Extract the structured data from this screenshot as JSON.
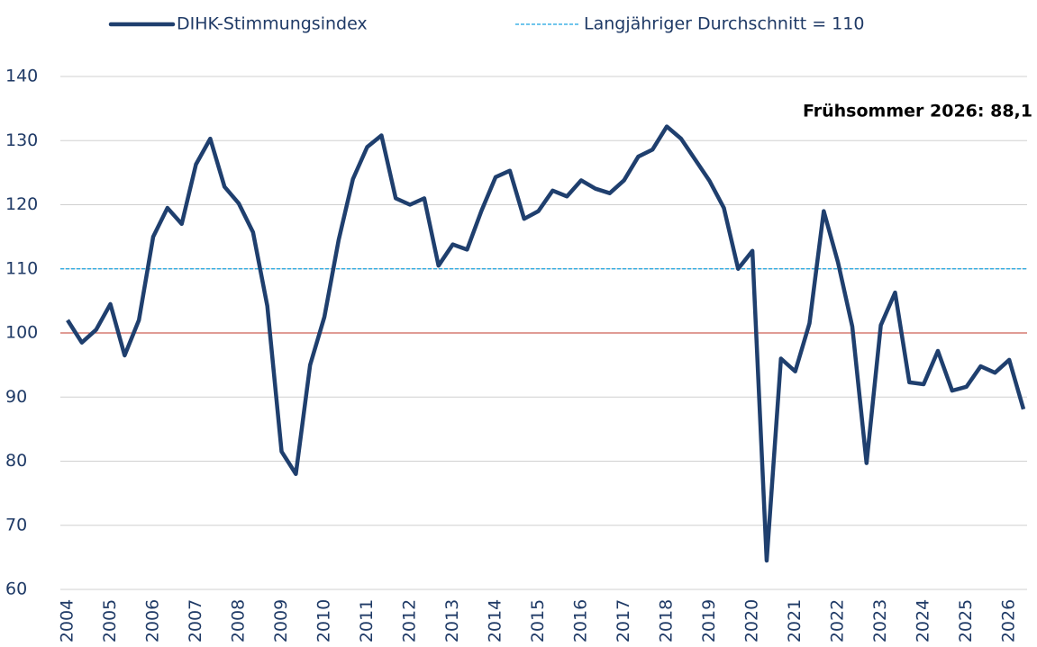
{
  "chart_data": {
    "type": "line",
    "categories": [
      "2004",
      null,
      null,
      "2005",
      null,
      null,
      "2006",
      null,
      null,
      "2007",
      null,
      null,
      "2008",
      null,
      null,
      "2009",
      null,
      null,
      "2010",
      null,
      null,
      "2011",
      null,
      null,
      "2012",
      null,
      null,
      "2013",
      null,
      null,
      "2014",
      null,
      null,
      "2015",
      null,
      null,
      "2016",
      null,
      null,
      "2017",
      null,
      null,
      "2018",
      null,
      null,
      "2019",
      null,
      null,
      "2020",
      null,
      null,
      "2021",
      null,
      null,
      "2022",
      null,
      null,
      "2023",
      null,
      null,
      "2024",
      null,
      null,
      "2025",
      null,
      null,
      "2026",
      null
    ],
    "series": [
      {
        "name": "DIHK-Stimmungsindex",
        "color": "#1f3f6e",
        "values": [
          102,
          98.5,
          100.5,
          104.5,
          96.5,
          102,
          115,
          119.5,
          117,
          126.3,
          130.3,
          122.8,
          120.2,
          115.7,
          104.2,
          81.5,
          78,
          95,
          102.5,
          114.5,
          124,
          129,
          130.8,
          121,
          120,
          121,
          110.5,
          113.8,
          113,
          119,
          124.3,
          125.3,
          117.8,
          119,
          122.2,
          121.3,
          123.8,
          122.5,
          121.8,
          123.8,
          127.5,
          128.6,
          132.2,
          130.3,
          127,
          123.7,
          119.5,
          110,
          112.8,
          64.5,
          96,
          94,
          101.5,
          119,
          111,
          101,
          79.7,
          101.2,
          106.3,
          92.3,
          92,
          97.2,
          91,
          91.6,
          94.8,
          93.8,
          95.8,
          88.1
        ]
      }
    ],
    "average": {
      "name": "Langjähriger Durchschnitt = 110",
      "value": 110,
      "color": "#1aa3e0"
    },
    "baseline": {
      "value": 100,
      "color": "#c0392b"
    },
    "annotation": "Frühsommer 2026: 88,1",
    "ylim": [
      60,
      140
    ],
    "yticks": [
      60,
      70,
      80,
      90,
      100,
      110,
      120,
      130,
      140
    ],
    "grid": true
  }
}
